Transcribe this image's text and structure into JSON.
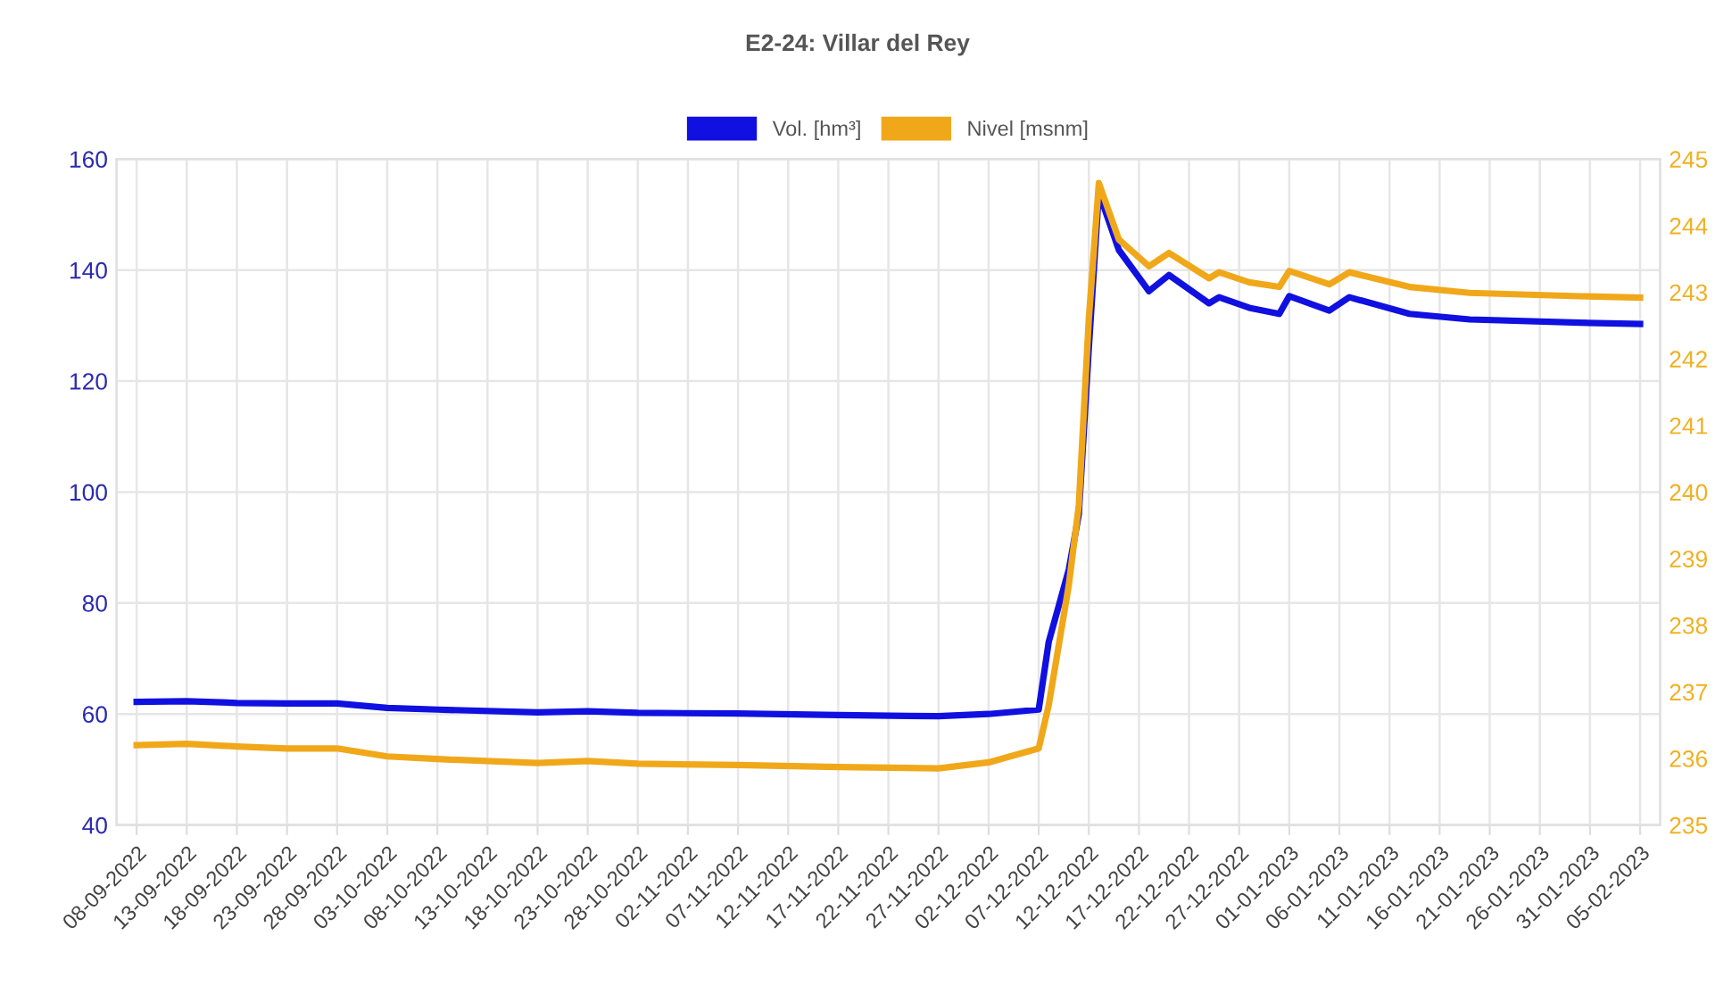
{
  "chart_data": {
    "type": "line",
    "title": "E2-24: Villar del Rey",
    "x": [
      "2022-09-08",
      "2022-09-13",
      "2022-09-18",
      "2022-09-23",
      "2022-09-28",
      "2022-10-03",
      "2022-10-08",
      "2022-10-18",
      "2022-10-23",
      "2022-10-28",
      "2022-11-07",
      "2022-11-17",
      "2022-11-27",
      "2022-12-02",
      "2022-12-07",
      "2022-12-08",
      "2022-12-10",
      "2022-12-11",
      "2022-12-12",
      "2022-12-13",
      "2022-12-15",
      "2022-12-18",
      "2022-12-20",
      "2022-12-24",
      "2022-12-25",
      "2022-12-28",
      "2022-12-31",
      "2023-01-01",
      "2023-01-05",
      "2023-01-07",
      "2023-01-13",
      "2023-01-19",
      "2023-01-30",
      "2023-02-05"
    ],
    "series": [
      {
        "name": "Vol. [hm³]",
        "color": "#1010e0",
        "values": [
          62.2,
          62.3,
          62.0,
          61.9,
          61.9,
          61.1,
          60.8,
          60.3,
          60.5,
          60.2,
          60.1,
          59.8,
          59.6,
          60.0,
          60.8,
          73,
          86,
          96,
          126,
          154,
          143.6,
          136.2,
          139.1,
          134.0,
          135.1,
          133.2,
          132.1,
          135.3,
          132.7,
          135.1,
          132.1,
          131.1,
          130.5,
          130.3
        ]
      },
      {
        "name": "Nivel [msnm]",
        "color": "#f0a81a",
        "axis": "y2",
        "values": [
          236.2,
          236.22,
          236.18,
          236.15,
          236.15,
          236.03,
          235.99,
          235.93,
          235.96,
          235.92,
          235.9,
          235.87,
          235.85,
          235.94,
          236.15,
          236.8,
          238.6,
          239.8,
          242.6,
          244.64,
          243.79,
          243.39,
          243.59,
          243.21,
          243.3,
          243.15,
          243.08,
          243.32,
          243.12,
          243.3,
          243.08,
          242.99,
          242.94,
          242.92
        ]
      }
    ],
    "xlim": [
      "2022-09-06",
      "2023-02-07"
    ],
    "xticks": [
      {
        "value": "2022-09-08",
        "label": "08-09-2022"
      },
      {
        "value": "2022-09-13",
        "label": "13-09-2022"
      },
      {
        "value": "2022-09-18",
        "label": "18-09-2022"
      },
      {
        "value": "2022-09-23",
        "label": "23-09-2022"
      },
      {
        "value": "2022-09-28",
        "label": "28-09-2022"
      },
      {
        "value": "2022-10-03",
        "label": "03-10-2022"
      },
      {
        "value": "2022-10-08",
        "label": "08-10-2022"
      },
      {
        "value": "2022-10-13",
        "label": "13-10-2022"
      },
      {
        "value": "2022-10-18",
        "label": "18-10-2022"
      },
      {
        "value": "2022-10-23",
        "label": "23-10-2022"
      },
      {
        "value": "2022-10-28",
        "label": "28-10-2022"
      },
      {
        "value": "2022-11-02",
        "label": "02-11-2022"
      },
      {
        "value": "2022-11-07",
        "label": "07-11-2022"
      },
      {
        "value": "2022-11-12",
        "label": "12-11-2022"
      },
      {
        "value": "2022-11-17",
        "label": "17-11-2022"
      },
      {
        "value": "2022-11-22",
        "label": "22-11-2022"
      },
      {
        "value": "2022-11-27",
        "label": "27-11-2022"
      },
      {
        "value": "2022-12-02",
        "label": "02-12-2022"
      },
      {
        "value": "2022-12-07",
        "label": "07-12-2022"
      },
      {
        "value": "2022-12-12",
        "label": "12-12-2022"
      },
      {
        "value": "2022-12-17",
        "label": "17-12-2022"
      },
      {
        "value": "2022-12-22",
        "label": "22-12-2022"
      },
      {
        "value": "2022-12-27",
        "label": "27-12-2022"
      },
      {
        "value": "2023-01-01",
        "label": "01-01-2023"
      },
      {
        "value": "2023-01-06",
        "label": "06-01-2023"
      },
      {
        "value": "2023-01-11",
        "label": "11-01-2023"
      },
      {
        "value": "2023-01-16",
        "label": "16-01-2023"
      },
      {
        "value": "2023-01-21",
        "label": "21-01-2023"
      },
      {
        "value": "2023-01-26",
        "label": "26-01-2023"
      },
      {
        "value": "2023-01-31",
        "label": "31-01-2023"
      },
      {
        "value": "2023-02-05",
        "label": "05-02-2023"
      }
    ],
    "ylim": [
      40,
      160
    ],
    "yticks": [
      40,
      60,
      80,
      100,
      120,
      140,
      160
    ],
    "y2lim": [
      235,
      245
    ],
    "y2ticks": [
      235,
      236,
      237,
      238,
      239,
      240,
      241,
      242,
      243,
      244,
      245
    ],
    "grid": true,
    "legend": "top",
    "marker": "none",
    "line_style": "solid"
  }
}
